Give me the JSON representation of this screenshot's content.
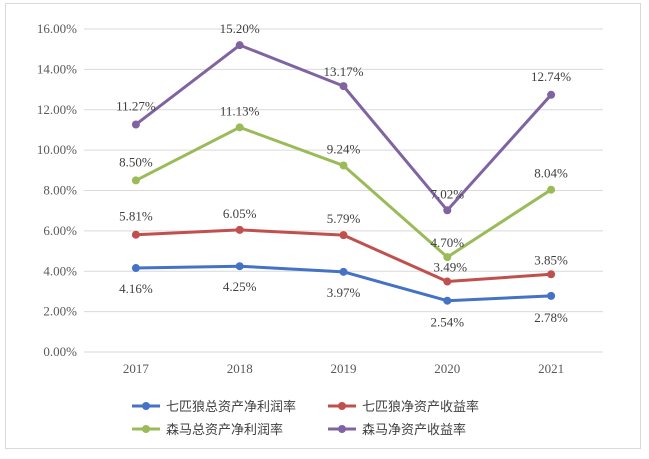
{
  "chart_data": {
    "type": "line",
    "categories": [
      "2017",
      "2018",
      "2019",
      "2020",
      "2021"
    ],
    "y_tick_labels": [
      "0.00%",
      "2.00%",
      "4.00%",
      "6.00%",
      "8.00%",
      "10.00%",
      "12.00%",
      "14.00%",
      "16.00%"
    ],
    "ylim": [
      0,
      16
    ],
    "grid": true,
    "legend_position": "bottom",
    "series": [
      {
        "name": "七匹狼总资产净利润率",
        "color": "#4472c4",
        "values": [
          4.16,
          4.25,
          3.97,
          2.54,
          2.78
        ],
        "labels": [
          "4.16%",
          "4.25%",
          "3.97%",
          "2.54%",
          "2.78%"
        ]
      },
      {
        "name": "七匹狼净资产收益率",
        "color": "#c0504d",
        "values": [
          5.81,
          6.05,
          5.79,
          3.49,
          3.85
        ],
        "labels": [
          "5.81%",
          "6.05%",
          "5.79%",
          "3.49%",
          "3.85%"
        ]
      },
      {
        "name": "森马总资产净利润率",
        "color": "#9bbb59",
        "values": [
          8.5,
          11.13,
          9.24,
          4.7,
          8.04
        ],
        "labels": [
          "8.50%",
          "11.13%",
          "9.24%",
          "4.70%",
          "8.04%"
        ]
      },
      {
        "name": "森马净资产收益率",
        "color": "#8064a2",
        "values": [
          11.27,
          15.2,
          13.17,
          7.02,
          12.74
        ],
        "labels": [
          "11.27%",
          "15.20%",
          "13.17%",
          "7.02%",
          "12.74%"
        ]
      }
    ]
  }
}
